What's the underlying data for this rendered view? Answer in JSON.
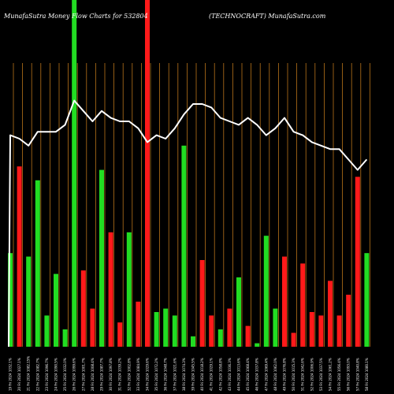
{
  "chart_data": {
    "type": "bar",
    "title_left": "MunafaSutra  Money Flow  Charts for 532804",
    "title_right": "(TECHNOCRAFT) MunafaSutra.com",
    "ylim": [
      0,
      100
    ],
    "colors": {
      "up": "#22dd22",
      "down": "#ff1a1a",
      "grid": "#b8731a",
      "line": "#ffffff",
      "background": "#000000"
    },
    "bars": [
      {
        "label": "19 Fri 2024 1032.1%",
        "value": 27,
        "color": "green"
      },
      {
        "label": "20 Fri 2024 1027.1%",
        "value": 52,
        "color": "red"
      },
      {
        "label": "21 Fri 2024 1082.15%",
        "value": 26,
        "color": "green"
      },
      {
        "label": "22 Fri 2024 1082.7%",
        "value": 48,
        "color": "green"
      },
      {
        "label": "23 Fri 2024 1096.7%",
        "value": 9,
        "color": "green"
      },
      {
        "label": "24 Fri 2024 1090.5%",
        "value": 21,
        "color": "green"
      },
      {
        "label": "25 Fri 2024 1032.0%",
        "value": 5,
        "color": "green"
      },
      {
        "label": "26 Fri 2024 1099.6%",
        "value": 100,
        "color": "green"
      },
      {
        "label": "27 Fri 2024 1001.7%",
        "value": 22,
        "color": "red"
      },
      {
        "label": "28 Fri 2024 1008.4%",
        "value": 11,
        "color": "red"
      },
      {
        "label": "29 Fri 2024 1087.7%",
        "value": 51,
        "color": "green"
      },
      {
        "label": "30 Fri 2024 1097.8%",
        "value": 33,
        "color": "red"
      },
      {
        "label": "31 Fri 2024 1039.2%",
        "value": 7,
        "color": "red"
      },
      {
        "label": "32 Fri 2024 1002.8%",
        "value": 33,
        "color": "green"
      },
      {
        "label": "33 Fri 2024 1084.9%",
        "value": 13,
        "color": "red"
      },
      {
        "label": "34 Fri 2024 1029.6%",
        "value": 100,
        "color": "red"
      },
      {
        "label": "35 Fri 2024 1072.2%",
        "value": 10,
        "color": "green"
      },
      {
        "label": "36 Fri 2024 1048.7%",
        "value": 11,
        "color": "green"
      },
      {
        "label": "37 Fri 2024 1021.6%",
        "value": 9,
        "color": "green"
      },
      {
        "label": "38 Fri 2024 1074.3%",
        "value": 58,
        "color": "green"
      },
      {
        "label": "39 Fri 2024 1045.5%",
        "value": 3,
        "color": "green"
      },
      {
        "label": "40 Fri 2024 1018.2%",
        "value": 25,
        "color": "red"
      },
      {
        "label": "41 Fri 2024 1029.1%",
        "value": 9,
        "color": "red"
      },
      {
        "label": "42 Fri 2024 1058.8%",
        "value": 5,
        "color": "green"
      },
      {
        "label": "43 Fri 2024 1036.3%",
        "value": 11,
        "color": "red"
      },
      {
        "label": "44 Fri 2024 1013.6%",
        "value": 20,
        "color": "green"
      },
      {
        "label": "45 Fri 2024 1068.4%",
        "value": 6,
        "color": "red"
      },
      {
        "label": "46 Fri 2024 1037.8%",
        "value": 1,
        "color": "green"
      },
      {
        "label": "47 Fri 2024 1069.4%",
        "value": 32,
        "color": "green"
      },
      {
        "label": "48 Fri 2024 1062.0%",
        "value": 11,
        "color": "green"
      },
      {
        "label": "49 Fri 2024 1076.8%",
        "value": 26,
        "color": "red"
      },
      {
        "label": "50 Fri 2024 1015.3%",
        "value": 4,
        "color": "red"
      },
      {
        "label": "51 Fri 2024 1042.6%",
        "value": 24,
        "color": "red"
      },
      {
        "label": "52 Fri 2024 1006.9%",
        "value": 10,
        "color": "red"
      },
      {
        "label": "53 Fri 2024 1037.5%",
        "value": 9,
        "color": "red"
      },
      {
        "label": "54 Fri 2024 1061.2%",
        "value": 19,
        "color": "red"
      },
      {
        "label": "55 Fri 2024 1056.4%",
        "value": 9,
        "color": "red"
      },
      {
        "label": "56 Fri 2024 1093.0%",
        "value": 15,
        "color": "red"
      },
      {
        "label": "57 Fri 2024 1040.8%",
        "value": 49,
        "color": "red"
      },
      {
        "label": "58 Fri 2024 1080.1%",
        "value": 27,
        "color": "green"
      }
    ],
    "line": [
      61,
      60,
      58,
      62,
      62,
      62,
      64,
      71,
      68,
      65,
      68,
      66,
      65,
      65,
      63,
      59,
      61,
      60,
      63,
      67,
      70,
      70,
      69,
      66,
      65,
      64,
      66,
      64,
      61,
      63,
      66,
      62,
      61,
      59,
      58,
      57,
      57,
      54,
      51,
      54
    ],
    "line_start": 0
  }
}
